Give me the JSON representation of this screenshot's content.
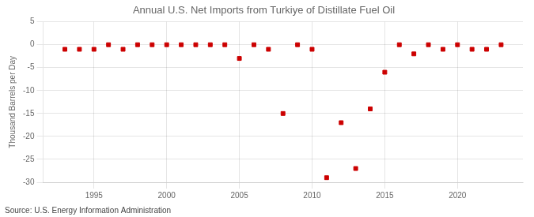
{
  "chart_data": {
    "type": "scatter",
    "title": "Annual U.S. Net Imports from Turkiye of Distillate Fuel Oil",
    "ylabel": "Thousand Barrels per Day",
    "annotation": "Source: U.S. Energy Information Administration",
    "x": [
      1993,
      1994,
      1995,
      1996,
      1997,
      1998,
      1999,
      2000,
      2001,
      2002,
      2003,
      2004,
      2005,
      2006,
      2007,
      2008,
      2009,
      2010,
      2011,
      2012,
      2013,
      2014,
      2015,
      2016,
      2017,
      2018,
      2019,
      2020,
      2021,
      2022,
      2023
    ],
    "values": [
      -1,
      -1,
      -1,
      0,
      -1,
      0,
      0,
      0,
      0,
      0,
      0,
      0,
      -3,
      0,
      -1,
      -15,
      0,
      -1,
      -29,
      -17,
      -27,
      -14,
      -6,
      0,
      -2,
      0,
      -1,
      0,
      -1,
      -1,
      0
    ],
    "color": "#cc0000",
    "marker": "square",
    "xlim": [
      1991.5,
      2024.5
    ],
    "xticks": [
      1995,
      2000,
      2005,
      2010,
      2015,
      2020
    ],
    "ylim": [
      -30,
      5
    ],
    "yticks": [
      5,
      0,
      -5,
      -10,
      -15,
      -20,
      -25,
      -30
    ],
    "grid": true
  }
}
